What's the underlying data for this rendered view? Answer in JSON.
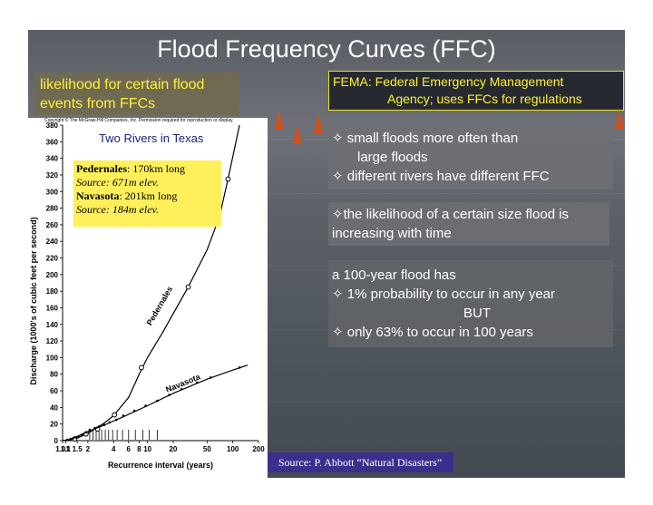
{
  "title": "Flood Frequency Curves (FFC)",
  "left_panel": "likelihood for certain flood events from FFCs",
  "fema": {
    "line1": "FEMA: Federal Emergency Management",
    "line2": "Agency; uses FFCs for regulations"
  },
  "bullets1": {
    "b1a": "✧ small floods more often than",
    "b1b": "large floods",
    "b2": "✧ different rivers have different FFC"
  },
  "likelihood": "✧the likelihood of a certain size flood is increasing with time",
  "hundred": {
    "l1": "a 100-year flood has",
    "l2": "✧ 1% probability to occur in any year",
    "l3": "BUT",
    "l4": "✧ only 63% to occur in 100 years"
  },
  "source": "Source: P. Abbott “Natural Disasters”",
  "copyright": "Copyright © The McGraw-Hill Companies, Inc. Permission required for reproduction or display.",
  "legend": {
    "ped_name": "Pedernales",
    "ped_len": ": 170km long",
    "ped_src": "Source: 671m elev.",
    "nav_name": "Navasota",
    "nav_len": ": 201km long",
    "nav_src": "Source: 184m elev."
  },
  "colors": {
    "title": "#ffffff",
    "highlight": "#ffef3a",
    "source_bg": "#3a2f8a",
    "legend_bg": "#ffef5a",
    "chart_title": "#1a237e"
  },
  "chart_data": {
    "type": "scatter",
    "title": "Two Rivers in Texas",
    "xlabel": "Recurrence interval (years)",
    "ylabel": "Discharge (1000's of cubic feet per second)",
    "x_scale": "log",
    "xlim": [
      1.01,
      200
    ],
    "ylim": [
      0,
      380
    ],
    "x_ticks": [
      1.01,
      1.1,
      1.5,
      2,
      4,
      6,
      8,
      10,
      20,
      50,
      100,
      200
    ],
    "x_tick_labels": [
      "1.01",
      "1.1",
      "1.5",
      "2",
      "4",
      "6",
      "8",
      "10",
      "20",
      "50",
      "100",
      "200"
    ],
    "y_ticks": [
      0,
      20,
      40,
      60,
      80,
      100,
      120,
      140,
      160,
      180,
      200,
      220,
      240,
      260,
      280,
      300,
      320,
      340,
      360,
      380
    ],
    "series": [
      {
        "name": "Pedernales",
        "points": [
          [
            1.4,
            2
          ],
          [
            1.9,
            8
          ],
          [
            2.6,
            14
          ],
          [
            4.1,
            31
          ],
          [
            8.5,
            88
          ],
          [
            30,
            185
          ],
          [
            88,
            315
          ]
        ],
        "curve": [
          [
            1.02,
            0
          ],
          [
            1.2,
            1
          ],
          [
            1.5,
            3
          ],
          [
            2,
            9
          ],
          [
            3,
            20
          ],
          [
            4,
            30
          ],
          [
            6,
            52
          ],
          [
            8,
            80
          ],
          [
            10,
            100
          ],
          [
            15,
            130
          ],
          [
            20,
            153
          ],
          [
            30,
            185
          ],
          [
            50,
            230
          ],
          [
            70,
            270
          ],
          [
            90,
            320
          ],
          [
            120,
            380
          ]
        ]
      },
      {
        "name": "Navasota",
        "points": [
          [
            1.15,
            1
          ],
          [
            1.25,
            2
          ],
          [
            1.35,
            3
          ],
          [
            1.45,
            4
          ],
          [
            1.55,
            5
          ],
          [
            1.7,
            7
          ],
          [
            1.9,
            10
          ],
          [
            2.1,
            13
          ],
          [
            2.4,
            15
          ],
          [
            2.7,
            17
          ],
          [
            3.1,
            19
          ],
          [
            3.6,
            22
          ],
          [
            4.3,
            25
          ],
          [
            5.2,
            30
          ],
          [
            7,
            36
          ],
          [
            9.5,
            42
          ],
          [
            13,
            48
          ],
          [
            18,
            55
          ],
          [
            25,
            62
          ],
          [
            38,
            70
          ],
          [
            55,
            76
          ],
          [
            120,
            88
          ]
        ],
        "curve": [
          [
            1.01,
            0
          ],
          [
            1.2,
            1
          ],
          [
            1.5,
            5
          ],
          [
            2,
            11
          ],
          [
            3,
            18
          ],
          [
            5,
            28
          ],
          [
            10,
            42
          ],
          [
            20,
            57
          ],
          [
            50,
            74
          ],
          [
            100,
            85
          ],
          [
            150,
            91
          ]
        ]
      }
    ],
    "series_labels": [
      "Pedernales",
      "Navasota"
    ],
    "rug_x": [
      2.1,
      2.3,
      2.5,
      2.7,
      2.9,
      3.2,
      3.5,
      3.9,
      4.4,
      5.1,
      6.0,
      7.2,
      8.8,
      10.5,
      13
    ]
  }
}
